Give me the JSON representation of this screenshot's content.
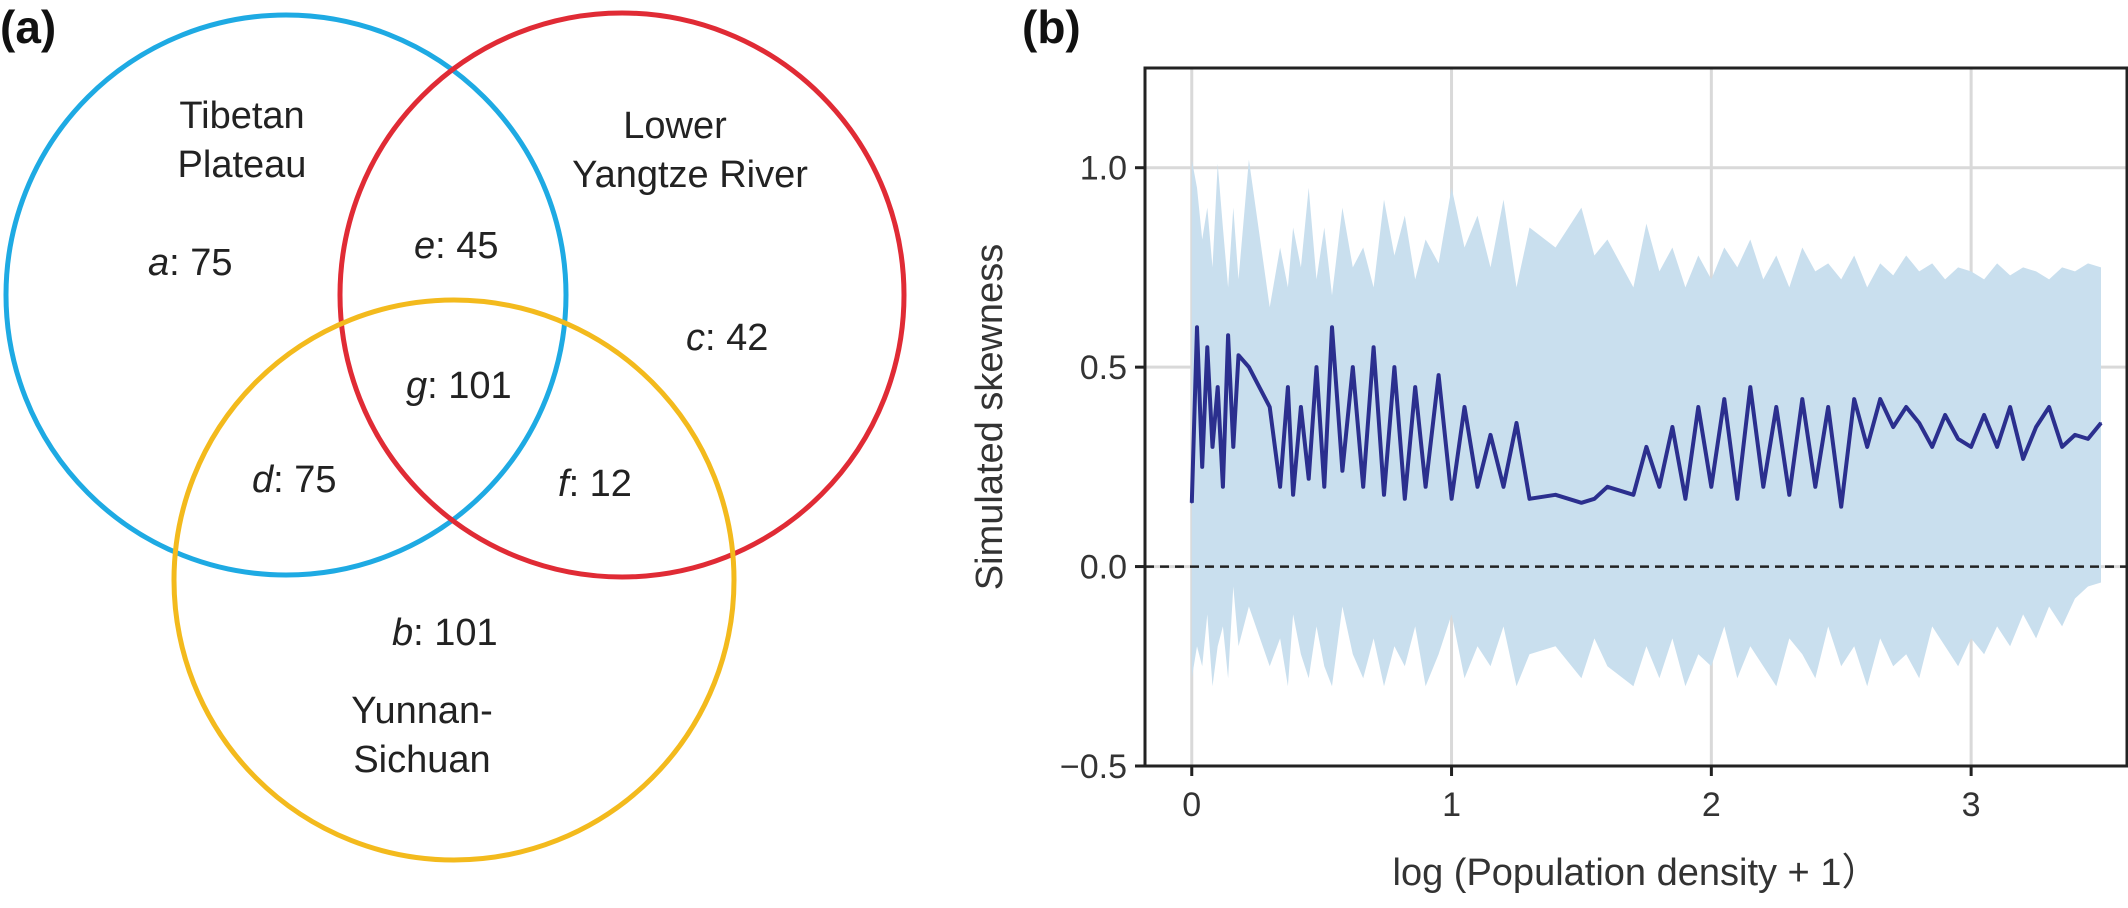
{
  "panels": {
    "a_label": "(a)",
    "b_label": "(b)"
  },
  "venn": {
    "sets": [
      {
        "name": "Tibetan Plateau",
        "lines": [
          "Tibetan",
          "Plateau"
        ],
        "color": "#1EAAE3"
      },
      {
        "name": "Lower Yangtze River",
        "lines": [
          "Lower",
          "Yangtze River"
        ],
        "color": "#E02B35"
      },
      {
        "name": "Yunnan-Sichuan",
        "lines": [
          "Yunnan-",
          "Sichuan"
        ],
        "color": "#F3BA1D"
      }
    ],
    "regions": [
      {
        "letter": "a",
        "value": ": 75"
      },
      {
        "letter": "e",
        "value": ": 45"
      },
      {
        "letter": "c",
        "value": ": 42"
      },
      {
        "letter": "g",
        "value": ": 101"
      },
      {
        "letter": "d",
        "value": ": 75"
      },
      {
        "letter": "f",
        "value": ": 12"
      },
      {
        "letter": "b",
        "value": ": 101"
      }
    ]
  },
  "chart_data": {
    "type": "line",
    "xlabel": "log (Population density + 1）",
    "ylabel": "Simulated skewness",
    "xlim": [
      -0.18,
      3.6
    ],
    "ylim": [
      -0.5,
      1.25
    ],
    "xticks": [
      0,
      1,
      2,
      3
    ],
    "xtick_labels": [
      "0",
      "1",
      "2",
      "3"
    ],
    "yticks": [
      -0.5,
      0.0,
      0.5,
      1.0
    ],
    "ytick_labels": [
      "−0.5",
      "0.0",
      "0.5",
      "1.0"
    ],
    "grid": true,
    "reference_line": {
      "y": 0.0,
      "style": "dashed"
    },
    "line_color": "#2B2F8E",
    "band_color": "#C9DFEE",
    "series": [
      {
        "x": [
          0.0,
          0.02,
          0.04,
          0.06,
          0.08,
          0.1,
          0.12,
          0.14,
          0.16,
          0.18,
          0.22,
          0.3,
          0.34,
          0.37,
          0.39,
          0.42,
          0.45,
          0.48,
          0.51,
          0.54,
          0.58,
          0.62,
          0.66,
          0.7,
          0.74,
          0.78,
          0.82,
          0.86,
          0.9,
          0.95,
          1.0,
          1.05,
          1.1,
          1.15,
          1.2,
          1.25,
          1.3,
          1.4,
          1.5,
          1.55,
          1.6,
          1.7,
          1.75,
          1.8,
          1.85,
          1.9,
          1.95,
          2.0,
          2.05,
          2.1,
          2.15,
          2.2,
          2.25,
          2.3,
          2.35,
          2.4,
          2.45,
          2.5,
          2.55,
          2.6,
          2.65,
          2.7,
          2.75,
          2.8,
          2.85,
          2.9,
          2.95,
          3.0,
          3.05,
          3.1,
          3.15,
          3.2,
          3.25,
          3.3,
          3.35,
          3.4,
          3.45,
          3.5
        ],
        "y": [
          0.16,
          0.6,
          0.25,
          0.55,
          0.3,
          0.45,
          0.2,
          0.58,
          0.3,
          0.53,
          0.5,
          0.4,
          0.2,
          0.45,
          0.18,
          0.4,
          0.22,
          0.5,
          0.2,
          0.6,
          0.24,
          0.5,
          0.2,
          0.55,
          0.18,
          0.5,
          0.17,
          0.45,
          0.2,
          0.48,
          0.17,
          0.4,
          0.2,
          0.33,
          0.2,
          0.36,
          0.17,
          0.18,
          0.16,
          0.17,
          0.2,
          0.18,
          0.3,
          0.2,
          0.35,
          0.17,
          0.4,
          0.2,
          0.42,
          0.17,
          0.45,
          0.2,
          0.4,
          0.18,
          0.42,
          0.2,
          0.4,
          0.15,
          0.42,
          0.3,
          0.42,
          0.35,
          0.4,
          0.36,
          0.3,
          0.38,
          0.32,
          0.3,
          0.38,
          0.3,
          0.4,
          0.27,
          0.35,
          0.4,
          0.3,
          0.33,
          0.32,
          0.36
        ]
      }
    ],
    "band_upper": [
      1.02,
      0.95,
      0.82,
      0.9,
      0.75,
      1.01,
      0.85,
      0.7,
      0.9,
      0.72,
      1.02,
      0.65,
      0.8,
      0.7,
      0.85,
      0.75,
      0.95,
      0.72,
      0.85,
      0.68,
      0.9,
      0.75,
      0.8,
      0.7,
      0.92,
      0.78,
      0.88,
      0.72,
      0.82,
      0.76,
      0.95,
      0.8,
      0.88,
      0.75,
      0.92,
      0.7,
      0.85,
      0.8,
      0.9,
      0.78,
      0.82,
      0.7,
      0.86,
      0.74,
      0.8,
      0.7,
      0.78,
      0.72,
      0.8,
      0.75,
      0.82,
      0.72,
      0.78,
      0.7,
      0.8,
      0.74,
      0.76,
      0.72,
      0.78,
      0.7,
      0.76,
      0.73,
      0.78,
      0.74,
      0.76,
      0.72,
      0.75,
      0.74,
      0.72,
      0.76,
      0.73,
      0.75,
      0.74,
      0.72,
      0.75,
      0.74,
      0.76,
      0.75
    ],
    "band_lower": [
      -0.28,
      -0.2,
      -0.25,
      -0.12,
      -0.3,
      -0.2,
      -0.15,
      -0.28,
      -0.05,
      -0.2,
      -0.1,
      -0.25,
      -0.18,
      -0.3,
      -0.12,
      -0.22,
      -0.28,
      -0.15,
      -0.25,
      -0.3,
      -0.1,
      -0.22,
      -0.28,
      -0.18,
      -0.3,
      -0.2,
      -0.25,
      -0.15,
      -0.3,
      -0.22,
      -0.12,
      -0.28,
      -0.2,
      -0.25,
      -0.15,
      -0.3,
      -0.22,
      -0.2,
      -0.28,
      -0.18,
      -0.25,
      -0.3,
      -0.2,
      -0.28,
      -0.18,
      -0.3,
      -0.22,
      -0.25,
      -0.15,
      -0.28,
      -0.2,
      -0.25,
      -0.3,
      -0.18,
      -0.22,
      -0.28,
      -0.15,
      -0.25,
      -0.2,
      -0.3,
      -0.18,
      -0.25,
      -0.22,
      -0.28,
      -0.15,
      -0.2,
      -0.25,
      -0.18,
      -0.22,
      -0.15,
      -0.2,
      -0.12,
      -0.18,
      -0.1,
      -0.15,
      -0.08,
      -0.05,
      -0.04
    ]
  }
}
